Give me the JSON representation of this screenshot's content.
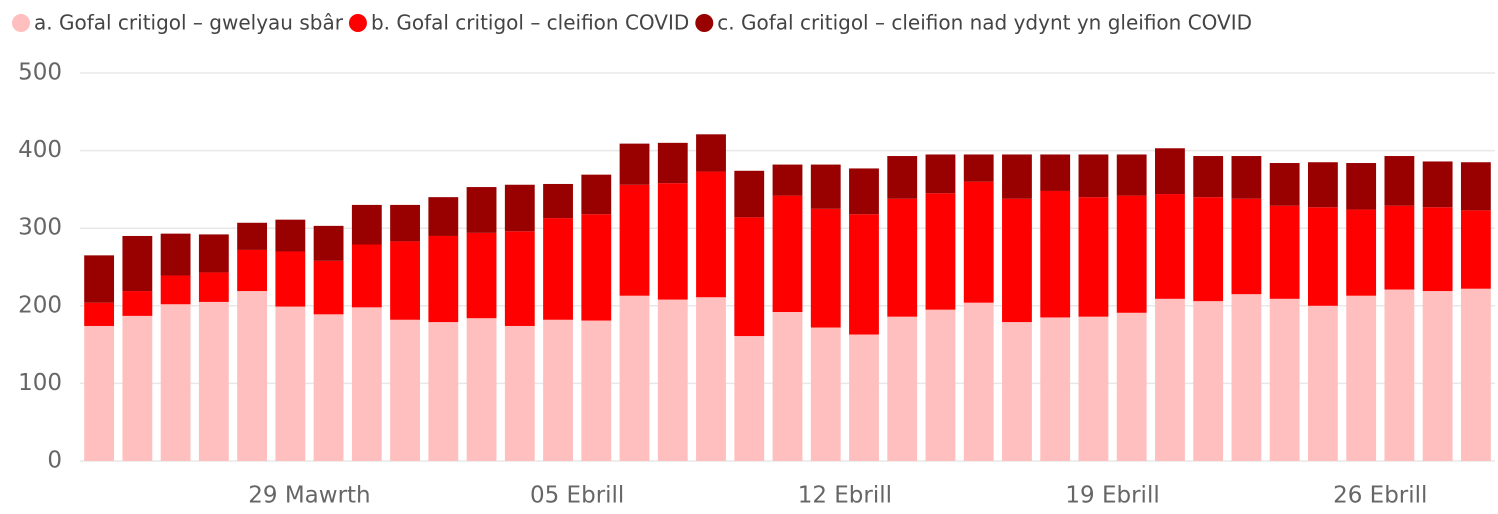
{
  "chart_data": {
    "type": "stacked_bar",
    "categories": [
      null,
      null,
      null,
      null,
      null,
      null,
      "29 Mawrth",
      null,
      null,
      null,
      null,
      null,
      null,
      "05 Ebrill",
      null,
      null,
      null,
      null,
      null,
      null,
      "12 Ebrill",
      null,
      null,
      null,
      null,
      null,
      null,
      "19 Ebrill",
      null,
      null,
      null,
      null,
      null,
      null,
      "26 Ebrill",
      null,
      null
    ],
    "series": [
      {
        "name": "a. Gofal critigol – gwelyau sbâr",
        "color": "#ffbfbf",
        "values": [
          174,
          187,
          202,
          205,
          219,
          199,
          189,
          198,
          182,
          179,
          184,
          174,
          182,
          181,
          213,
          208,
          211,
          161,
          192,
          172,
          163,
          186,
          195,
          204,
          179,
          185,
          186,
          191,
          209,
          206,
          215,
          209,
          200,
          213,
          221,
          219,
          222
        ]
      },
      {
        "name": "b. Gofal critigol – cleifion COVID",
        "color": "#ff0000",
        "values": [
          30,
          32,
          37,
          38,
          53,
          71,
          69,
          81,
          101,
          111,
          110,
          122,
          131,
          137,
          143,
          150,
          162,
          153,
          150,
          153,
          155,
          152,
          150,
          156,
          159,
          163,
          154,
          151,
          135,
          134,
          123,
          120,
          127,
          111,
          108,
          108,
          101
        ]
      },
      {
        "name": "c. Gofal critigol – cleifion nad ydynt yn gleifion COVID",
        "color": "#990000",
        "values": [
          61,
          71,
          54,
          49,
          35,
          41,
          45,
          51,
          47,
          50,
          59,
          60,
          44,
          51,
          53,
          52,
          48,
          60,
          40,
          57,
          59,
          55,
          50,
          35,
          57,
          47,
          55,
          53,
          59,
          53,
          55,
          55,
          58,
          60,
          64,
          59,
          62
        ]
      }
    ],
    "ylim": [
      0,
      500
    ],
    "yticks": [
      0,
      100,
      200,
      300,
      400,
      500
    ],
    "grid": true,
    "legend": "top"
  }
}
